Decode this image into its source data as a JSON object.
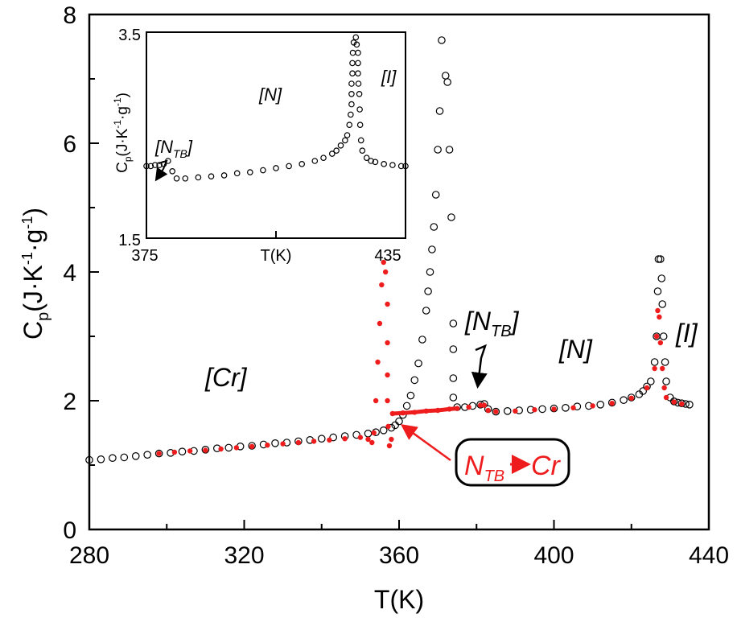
{
  "chart_data": [
    {
      "type": "scatter",
      "xlabel": "T(K)",
      "ylabel": "C",
      "ylabel_sub": "p",
      "ylabel_units": "(J·K",
      "ylabel_exp1": "-1",
      "ylabel_mid": "·g",
      "ylabel_exp2": "-1",
      "ylabel_end": ")",
      "xlim": [
        280,
        440
      ],
      "ylim": [
        0,
        8
      ],
      "xticks": [
        "280",
        "320",
        "360",
        "400",
        "440"
      ],
      "yticks": [
        "0",
        "2",
        "4",
        "6",
        "8"
      ],
      "grid": false,
      "series": [
        {
          "marker": "open-circle",
          "color": "#000000",
          "points": [
            [
              280,
              1.08
            ],
            [
              283,
              1.09
            ],
            [
              286,
              1.11
            ],
            [
              289,
              1.12
            ],
            [
              292,
              1.14
            ],
            [
              295,
              1.16
            ],
            [
              298,
              1.18
            ],
            [
              301,
              1.19
            ],
            [
              304,
              1.21
            ],
            [
              307,
              1.22
            ],
            [
              310,
              1.24
            ],
            [
              313,
              1.26
            ],
            [
              316,
              1.27
            ],
            [
              319,
              1.29
            ],
            [
              322,
              1.3
            ],
            [
              325,
              1.32
            ],
            [
              328,
              1.34
            ],
            [
              331,
              1.35
            ],
            [
              334,
              1.37
            ],
            [
              337,
              1.39
            ],
            [
              340,
              1.41
            ],
            [
              343,
              1.43
            ],
            [
              346,
              1.45
            ],
            [
              349,
              1.47
            ],
            [
              352,
              1.49
            ],
            [
              354,
              1.51
            ],
            [
              356,
              1.54
            ],
            [
              358,
              1.58
            ],
            [
              359,
              1.62
            ],
            [
              360,
              1.68
            ],
            [
              361,
              1.78
            ],
            [
              362,
              1.92
            ],
            [
              363,
              2.08
            ],
            [
              364,
              2.32
            ],
            [
              365,
              2.58
            ],
            [
              366,
              2.95
            ],
            [
              367,
              3.4
            ],
            [
              367.5,
              3.7
            ],
            [
              368,
              4.0
            ],
            [
              368.5,
              4.35
            ],
            [
              369,
              4.7
            ],
            [
              369.5,
              5.2
            ],
            [
              370,
              5.9
            ],
            [
              370.5,
              6.5
            ],
            [
              371,
              7.6
            ],
            [
              372,
              7.05
            ],
            [
              372.5,
              6.95
            ],
            [
              373,
              5.9
            ],
            [
              373.5,
              4.85
            ],
            [
              374,
              3.2
            ],
            [
              374,
              2.8
            ],
            [
              374,
              2.35
            ],
            [
              374,
              2.05
            ],
            [
              375,
              1.9
            ],
            [
              377,
              1.9
            ],
            [
              379,
              1.92
            ],
            [
              381,
              1.94
            ],
            [
              382,
              1.95
            ],
            [
              383,
              1.87
            ],
            [
              385,
              1.83
            ],
            [
              388,
              1.84
            ],
            [
              391,
              1.85
            ],
            [
              394,
              1.86
            ],
            [
              397,
              1.87
            ],
            [
              400,
              1.88
            ],
            [
              403,
              1.89
            ],
            [
              406,
              1.91
            ],
            [
              409,
              1.92
            ],
            [
              412,
              1.94
            ],
            [
              415,
              1.97
            ],
            [
              418,
              2.01
            ],
            [
              420,
              2.05
            ],
            [
              422,
              2.1
            ],
            [
              423,
              2.15
            ],
            [
              424,
              2.22
            ],
            [
              425,
              2.3
            ],
            [
              426,
              2.6
            ],
            [
              426.5,
              3.0
            ],
            [
              426.8,
              3.7
            ],
            [
              427,
              4.2
            ],
            [
              427.5,
              4.2
            ],
            [
              427.8,
              3.9
            ],
            [
              428,
              3.5
            ],
            [
              428.3,
              3.0
            ],
            [
              428.7,
              2.6
            ],
            [
              429,
              2.3
            ],
            [
              430,
              2.05
            ],
            [
              431,
              1.99
            ],
            [
              432,
              1.97
            ],
            [
              433,
              1.96
            ],
            [
              434,
              1.95
            ],
            [
              435,
              1.94
            ]
          ]
        },
        {
          "marker": "filled-circle",
          "color": "#ee1c1c",
          "points": [
            [
              298,
              1.18
            ],
            [
              302,
              1.2
            ],
            [
              306,
              1.22
            ],
            [
              310,
              1.23
            ],
            [
              314,
              1.25
            ],
            [
              318,
              1.27
            ],
            [
              322,
              1.29
            ],
            [
              326,
              1.31
            ],
            [
              330,
              1.33
            ],
            [
              334,
              1.35
            ],
            [
              338,
              1.37
            ],
            [
              342,
              1.39
            ],
            [
              346,
              1.41
            ],
            [
              350,
              1.43
            ],
            [
              352,
              1.4
            ],
            [
              353,
              1.35
            ],
            [
              353.5,
              1.5
            ],
            [
              354,
              2.0
            ],
            [
              354.5,
              2.6
            ],
            [
              355,
              3.2
            ],
            [
              355.5,
              3.8
            ],
            [
              356,
              4.15
            ],
            [
              356.5,
              4.0
            ],
            [
              357,
              3.5
            ],
            [
              357,
              2.9
            ],
            [
              357,
              2.4
            ],
            [
              357,
              2.0
            ],
            [
              357.2,
              1.6
            ],
            [
              357.5,
              1.3
            ],
            [
              358,
              1.4
            ],
            [
              358.3,
              1.8
            ],
            [
              361,
              1.81
            ],
            [
              364,
              1.82
            ],
            [
              367,
              1.84
            ],
            [
              370,
              1.85
            ],
            [
              373,
              1.87
            ],
            [
              375,
              1.88
            ],
            [
              378,
              1.9
            ],
            [
              381,
              1.93
            ],
            [
              382,
              1.93
            ],
            [
              383,
              1.85
            ],
            [
              385,
              1.83
            ],
            [
              390,
              1.84
            ],
            [
              395,
              1.86
            ],
            [
              400,
              1.87
            ],
            [
              405,
              1.89
            ],
            [
              410,
              1.92
            ],
            [
              415,
              1.96
            ],
            [
              420,
              2.04
            ],
            [
              424,
              2.2
            ],
            [
              426,
              2.5
            ],
            [
              426.5,
              3.0
            ],
            [
              426.8,
              3.4
            ],
            [
              427.2,
              3.3
            ],
            [
              427.5,
              2.9
            ],
            [
              428,
              2.5
            ],
            [
              428.5,
              2.2
            ],
            [
              429,
              2.05
            ],
            [
              431,
              1.98
            ],
            [
              433,
              1.95
            ]
          ]
        }
      ],
      "annotations": {
        "cr": "[Cr]",
        "ntb_n": "[N",
        "ntb_sub": "TB",
        "ntb_close": "]",
        "n": "[N]",
        "i": "[I]",
        "box_n": "N",
        "box_sub": "TB",
        "box_cr": "Cr"
      }
    },
    {
      "type": "scatter",
      "xlabel": "T(K)",
      "ylabel": "C",
      "ylabel_sub": "p",
      "ylabel_units": "(J·K",
      "ylabel_exp1": "-1",
      "ylabel_mid": "·g",
      "ylabel_exp2": "-1",
      "ylabel_end": ")",
      "xlim": [
        375,
        435
      ],
      "ylim": [
        1.5,
        3.5
      ],
      "xticks": [
        "375",
        "435"
      ],
      "yticks": [
        "1.5",
        "3.5"
      ],
      "grid": false,
      "series": [
        {
          "marker": "open-circle",
          "color": "#000000",
          "points": [
            [
              375,
              2.2
            ],
            [
              376,
              2.2
            ],
            [
              377,
              2.21
            ],
            [
              378,
              2.21
            ],
            [
              379,
              2.22
            ],
            [
              380,
              2.25
            ],
            [
              381,
              2.15
            ],
            [
              382,
              2.08
            ],
            [
              384,
              2.08
            ],
            [
              387,
              2.09
            ],
            [
              390,
              2.1
            ],
            [
              393,
              2.11
            ],
            [
              396,
              2.13
            ],
            [
              399,
              2.14
            ],
            [
              402,
              2.16
            ],
            [
              405,
              2.18
            ],
            [
              408,
              2.2
            ],
            [
              411,
              2.22
            ],
            [
              414,
              2.25
            ],
            [
              416,
              2.28
            ],
            [
              418,
              2.32
            ],
            [
              419,
              2.35
            ],
            [
              420,
              2.4
            ],
            [
              421,
              2.45
            ],
            [
              421.5,
              2.5
            ],
            [
              422,
              2.6
            ],
            [
              422.3,
              2.7
            ],
            [
              422.5,
              2.8
            ],
            [
              422.5,
              2.9
            ],
            [
              422.5,
              3.0
            ],
            [
              422.7,
              3.1
            ],
            [
              422.7,
              3.2
            ],
            [
              422.8,
              3.3
            ],
            [
              423,
              3.4
            ],
            [
              423.5,
              3.45
            ],
            [
              423.7,
              3.38
            ],
            [
              424,
              3.3
            ],
            [
              424,
              3.2
            ],
            [
              424,
              3.1
            ],
            [
              424.1,
              3.0
            ],
            [
              424.3,
              2.9
            ],
            [
              424.4,
              2.75
            ],
            [
              424.5,
              2.6
            ],
            [
              424.7,
              2.45
            ],
            [
              425,
              2.35
            ],
            [
              426,
              2.28
            ],
            [
              427,
              2.25
            ],
            [
              428,
              2.24
            ],
            [
              430,
              2.22
            ],
            [
              432,
              2.21
            ],
            [
              434,
              2.2
            ],
            [
              435,
              2.2
            ]
          ]
        }
      ],
      "annotations": {
        "n": "[N]",
        "i": "[I]",
        "ntb_n": "[N",
        "ntb_sub": "TB",
        "ntb_close": "]"
      }
    }
  ]
}
